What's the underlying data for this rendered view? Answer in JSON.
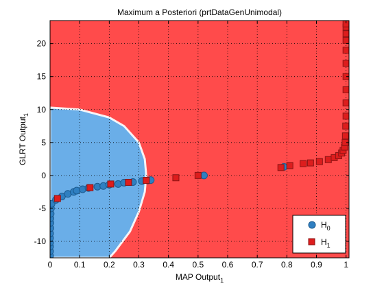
{
  "chart_data": {
    "type": "scatter",
    "title": "Maximum a Posteriori (prtDataGenUnimodal)",
    "xlabel": {
      "main": "MAP Output",
      "sub": "1"
    },
    "ylabel": {
      "main": "GLRT Output",
      "sub": "1"
    },
    "xlim": [
      0,
      1.01
    ],
    "ylim": [
      -12.5,
      23.5
    ],
    "xticks": [
      0,
      0.1,
      0.2,
      0.3,
      0.4,
      0.5,
      0.6,
      0.7,
      0.8,
      0.9,
      1
    ],
    "yticks": [
      -10,
      -5,
      0,
      5,
      10,
      15,
      20
    ],
    "grid": true,
    "legend_position": "bottom-right",
    "background_regions": {
      "description": "decision surface",
      "inside_color": "#6aaee8",
      "outside_color": "#ff4b4b",
      "inside_boundary_samples": [
        [
          0,
          10.3
        ],
        [
          0.1,
          10.0
        ],
        [
          0.2,
          8.8
        ],
        [
          0.25,
          7.5
        ],
        [
          0.3,
          5.0
        ],
        [
          0.32,
          2.5
        ],
        [
          0.325,
          0
        ],
        [
          0.32,
          -2.5
        ],
        [
          0.3,
          -5.5
        ],
        [
          0.27,
          -8.5
        ],
        [
          0.22,
          -11.5
        ],
        [
          0.2,
          -12.5
        ]
      ]
    },
    "series": [
      {
        "name": "H",
        "name_sub": "0",
        "marker": "circle",
        "color": "#2f7fc1",
        "edge": "#1b5a8e",
        "points": [
          [
            0.0,
            -12.2
          ],
          [
            0.0,
            -11.5
          ],
          [
            0.0,
            -10.8
          ],
          [
            0.0,
            -10.2
          ],
          [
            0.0,
            -9.5
          ],
          [
            0.0,
            -8.8
          ],
          [
            0.001,
            -8.0
          ],
          [
            0.001,
            -7.2
          ],
          [
            0.001,
            -6.5
          ],
          [
            0.002,
            -5.8
          ],
          [
            0.003,
            -5.0
          ],
          [
            0.005,
            -4.3
          ],
          [
            0.02,
            -3.7
          ],
          [
            0.04,
            -3.2
          ],
          [
            0.06,
            -2.8
          ],
          [
            0.08,
            -2.5
          ],
          [
            0.09,
            -2.3
          ],
          [
            0.11,
            -2.1
          ],
          [
            0.13,
            -1.9
          ],
          [
            0.16,
            -1.7
          ],
          [
            0.18,
            -1.6
          ],
          [
            0.2,
            -1.4
          ],
          [
            0.23,
            -1.3
          ],
          [
            0.25,
            -1.1
          ],
          [
            0.28,
            -1.0
          ],
          [
            0.31,
            -0.85
          ],
          [
            0.33,
            -0.75
          ],
          [
            0.34,
            -0.7
          ],
          [
            0.52,
            0.0
          ],
          [
            0.79,
            1.3
          ]
        ]
      },
      {
        "name": "H",
        "name_sub": "1",
        "marker": "square",
        "color": "#dd1d1d",
        "edge": "#8a1414",
        "points": [
          [
            0.025,
            -3.5
          ],
          [
            0.135,
            -1.85
          ],
          [
            0.205,
            -1.3
          ],
          [
            0.265,
            -1.05
          ],
          [
            0.325,
            -0.75
          ],
          [
            0.425,
            -0.35
          ],
          [
            0.5,
            0.0
          ],
          [
            0.78,
            1.2
          ],
          [
            0.81,
            1.5
          ],
          [
            0.855,
            1.8
          ],
          [
            0.88,
            1.9
          ],
          [
            0.91,
            2.1
          ],
          [
            0.94,
            2.4
          ],
          [
            0.96,
            2.7
          ],
          [
            0.975,
            3.0
          ],
          [
            0.985,
            3.4
          ],
          [
            0.99,
            3.8
          ],
          [
            0.995,
            4.3
          ],
          [
            0.997,
            5.0
          ],
          [
            0.998,
            6.0
          ],
          [
            0.999,
            7.5
          ],
          [
            1.0,
            9.0
          ],
          [
            1.0,
            11.0
          ],
          [
            1.0,
            13.0
          ],
          [
            1.0,
            15.0
          ],
          [
            1.0,
            17.0
          ],
          [
            1.0,
            19.0
          ],
          [
            1.0,
            20.5
          ],
          [
            1.0,
            21.5
          ],
          [
            1.0,
            22.5
          ],
          [
            1.0,
            23.0
          ]
        ]
      }
    ]
  }
}
